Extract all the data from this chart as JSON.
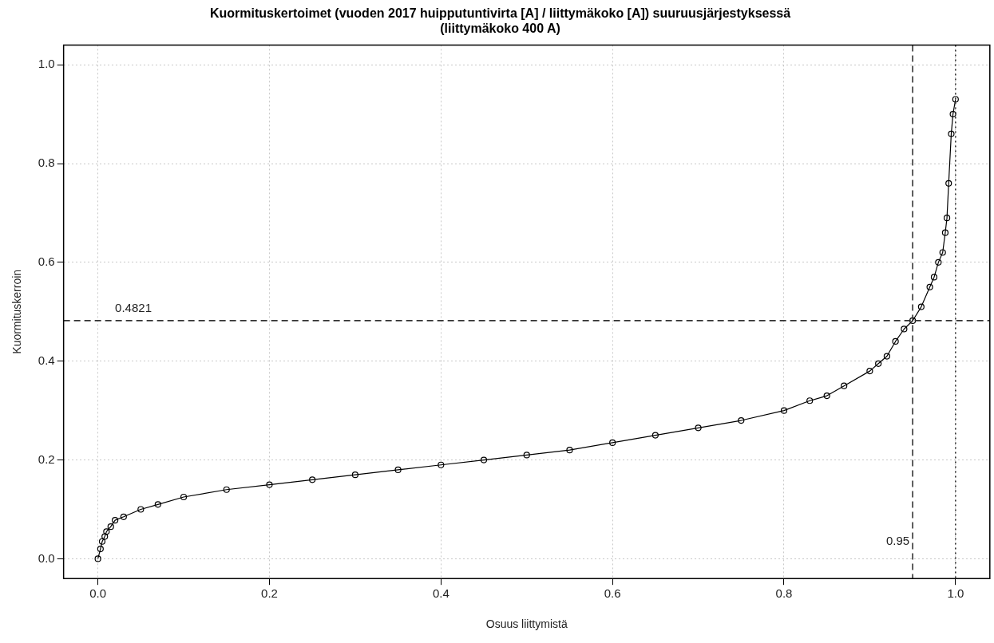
{
  "chart_data": {
    "type": "line",
    "title": "Kuormituskertoimet (vuoden 2017 huipputuntivirta [A] / liittymäkoko [A]) suuruusjärjestyksessä\n(liittymäkoko 400 A)",
    "xlabel": "Osuus liittymistä",
    "ylabel": "Kuormituskerroin",
    "x": [
      0,
      0.003,
      0.005,
      0.008,
      0.01,
      0.015,
      0.02,
      0.03,
      0.05,
      0.07,
      0.1,
      0.15,
      0.2,
      0.25,
      0.3,
      0.35,
      0.4,
      0.45,
      0.5,
      0.55,
      0.6,
      0.65,
      0.7,
      0.75,
      0.8,
      0.83,
      0.85,
      0.87,
      0.9,
      0.91,
      0.92,
      0.93,
      0.94,
      0.95,
      0.96,
      0.97,
      0.975,
      0.98,
      0.985,
      0.988,
      0.99,
      0.992,
      0.995,
      0.997,
      1.0
    ],
    "series": [
      {
        "color": "#000000",
        "values": [
          0,
          0.02,
          0.035,
          0.045,
          0.055,
          0.065,
          0.078,
          0.085,
          0.1,
          0.11,
          0.125,
          0.14,
          0.15,
          0.16,
          0.17,
          0.18,
          0.19,
          0.2,
          0.21,
          0.22,
          0.235,
          0.25,
          0.265,
          0.28,
          0.3,
          0.32,
          0.33,
          0.35,
          0.38,
          0.395,
          0.41,
          0.44,
          0.465,
          0.482,
          0.51,
          0.55,
          0.57,
          0.6,
          0.62,
          0.66,
          0.69,
          0.76,
          0.86,
          0.9,
          0.93
        ]
      }
    ],
    "xlim": [
      -0.04,
      1.04
    ],
    "ylim": [
      -0.04,
      1.04
    ],
    "xticks": [
      {
        "value": 0,
        "label": "0.0"
      },
      0.2,
      0.4,
      0.6,
      0.8,
      {
        "value": 1,
        "label": "1.0"
      }
    ],
    "yticks": [
      {
        "value": 0,
        "label": "0.0"
      },
      0.2,
      0.4,
      0.6,
      0.8,
      {
        "value": 1,
        "label": "1.0"
      }
    ],
    "ref_lines": [
      {
        "axis": "y",
        "value": 0.4821,
        "label": "0.4821",
        "line_style": "dashed",
        "color": "#333333"
      },
      {
        "axis": "x",
        "value": 0.95,
        "label": "0.95",
        "line_style": "dashed",
        "color": "#333333"
      },
      {
        "axis": "x",
        "value": 1.0,
        "line_style": "dotted",
        "color": "#333333"
      }
    ],
    "grid": true,
    "legend": false,
    "marker": "circle",
    "line_style": "solid"
  }
}
